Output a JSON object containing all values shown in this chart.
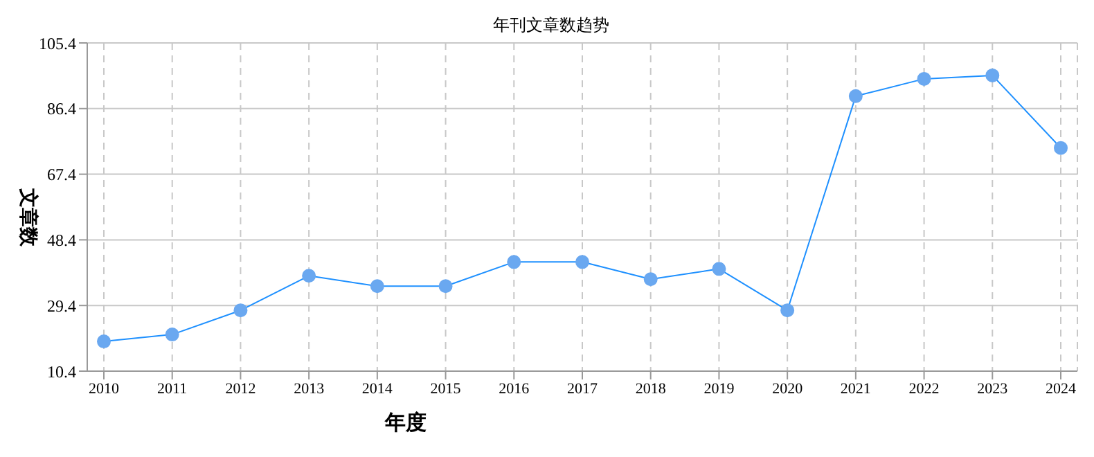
{
  "chart_data": {
    "type": "line",
    "title": "年刊文章数趋势",
    "xlabel": "年度",
    "ylabel": "文章数",
    "categories": [
      "2010",
      "2011",
      "2012",
      "2013",
      "2014",
      "2015",
      "2016",
      "2017",
      "2018",
      "2019",
      "2020",
      "2021",
      "2022",
      "2023",
      "2024"
    ],
    "series": [
      {
        "color": "#1e90ff",
        "values": [
          19,
          21,
          28,
          38,
          35,
          35,
          42,
          42,
          37,
          40,
          28,
          90,
          95,
          96,
          75
        ]
      }
    ],
    "ylim": [
      10.4,
      105.4
    ],
    "yticks": [
      10.4,
      29.4,
      48.4,
      67.4,
      86.4,
      105.4
    ],
    "grid": true,
    "legend": false,
    "marker": "circle",
    "line_style": "solid"
  }
}
